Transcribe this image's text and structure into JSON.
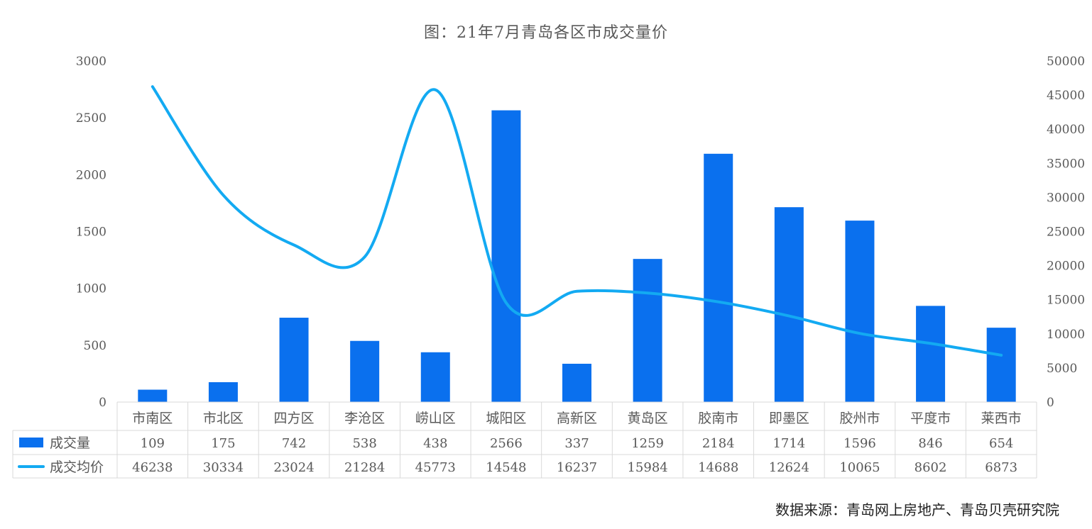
{
  "chart_data": {
    "type": "bar",
    "title": "图：21年7月青岛各区市成交量价",
    "categories": [
      "市南区",
      "市北区",
      "四方区",
      "李沧区",
      "崂山区",
      "城阳区",
      "高新区",
      "黄岛区",
      "胶南市",
      "即墨区",
      "胶州市",
      "平度市",
      "莱西市"
    ],
    "series": [
      {
        "name": "成交量",
        "type": "bar",
        "axis": "left",
        "color": "#0a70ee",
        "values": [
          109,
          175,
          742,
          538,
          438,
          2566,
          337,
          1259,
          2184,
          1714,
          1596,
          846,
          654
        ]
      },
      {
        "name": "成交均价",
        "type": "line",
        "axis": "right",
        "color": "#13aaf2",
        "values": [
          46238,
          30334,
          23024,
          21284,
          45773,
          14548,
          16237,
          15984,
          14688,
          12624,
          10065,
          8602,
          6873
        ]
      }
    ],
    "y_left": {
      "ylim": [
        0,
        3000
      ],
      "ticks": [
        "0",
        "500",
        "1000",
        "1500",
        "2000",
        "2500",
        "3000"
      ]
    },
    "y_right": {
      "ylim": [
        0,
        50000
      ],
      "ticks": [
        "0",
        "5000",
        "10000",
        "15000",
        "20000",
        "25000",
        "30000",
        "35000",
        "40000",
        "45000",
        "50000"
      ]
    },
    "grid": false,
    "legend": "data-table"
  },
  "source": "数据来源：青岛网上房地产、青岛贝壳研究院"
}
